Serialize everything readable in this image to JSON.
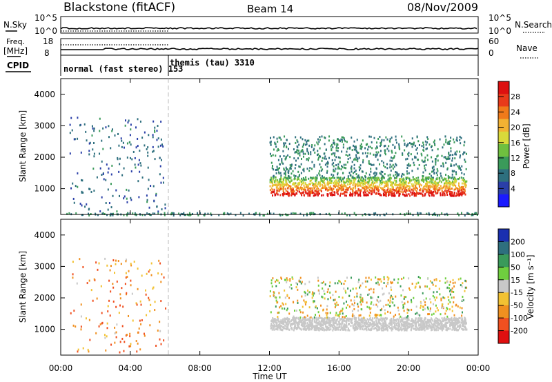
{
  "header": {
    "station": "Blackstone (fitACF)",
    "beam": "Beam 14",
    "date": "08/Nov/2009"
  },
  "side_labels": {
    "nsky": "N.Sky",
    "nsearch": "N.Search",
    "freq_top": "Freq.",
    "freq_unit": "[MHz]",
    "nave": "Nave",
    "cpid": "CPID"
  },
  "cpid_modes": [
    {
      "label": "normal (fast stereo) 153",
      "start_hour": 0.0
    },
    {
      "label": "themis (tau) 3310",
      "start_hour": 6.0
    }
  ],
  "noise_panel": {
    "left_ticks": [
      "10^5",
      "10^0"
    ],
    "right_ticks": [
      "10^5",
      "10^0"
    ]
  },
  "freq_panel": {
    "left_ticks": [
      "18",
      "8"
    ],
    "right_ticks": [
      "60",
      "0"
    ]
  },
  "x_axis": {
    "label": "Time UT",
    "ticks": [
      "00:00",
      "04:00",
      "08:00",
      "12:00",
      "16:00",
      "20:00",
      "00:00"
    ]
  },
  "chart_data": [
    {
      "type": "heatmap",
      "name": "power",
      "ylabel": "Slant Range [km]",
      "yticks": [
        "1000",
        "2000",
        "3000",
        "4000"
      ],
      "ylim": [
        180,
        4500
      ],
      "xlim_hours": [
        0,
        24
      ],
      "colorbar": {
        "label": "Power [dB]",
        "ticks": [
          "4",
          "8",
          "12",
          "16",
          "20",
          "24",
          "28"
        ],
        "colors": [
          "#1a1aff",
          "#2a3fa8",
          "#2e6f7e",
          "#3a9a5a",
          "#6fbf3f",
          "#d9d93a",
          "#f2b233",
          "#f07a1a",
          "#e83a1a",
          "#dd1010"
        ]
      },
      "regions": [
        {
          "feature": "sparse scatter",
          "hours": [
            0.5,
            6.0
          ],
          "range_km": [
            300,
            3300
          ],
          "level_db": 6
        },
        {
          "feature": "ground scatter band",
          "hours": [
            12.0,
            23.3
          ],
          "range_km": [
            800,
            1400
          ],
          "level_db": 24
        },
        {
          "feature": "diffuse echoes",
          "hours": [
            12.0,
            23.3
          ],
          "range_km": [
            1400,
            2700
          ],
          "level_db": 8
        },
        {
          "feature": "near-range line",
          "hours": [
            0.0,
            24.0
          ],
          "range_km": [
            180,
            260
          ],
          "level_db": 8
        }
      ]
    },
    {
      "type": "heatmap",
      "name": "velocity",
      "ylabel": "Slant Range [km]",
      "yticks": [
        "1000",
        "2000",
        "3000",
        "4000"
      ],
      "ylim": [
        180,
        4500
      ],
      "xlim_hours": [
        0,
        24
      ],
      "colorbar": {
        "label": "Velocity [m s⁻¹]",
        "ticks": [
          "200",
          "100",
          "50",
          "15",
          "-15",
          "-50",
          "-100",
          "-200"
        ],
        "colors": [
          "#1a2fb0",
          "#2e6f7e",
          "#3a9a5a",
          "#6fcf3f",
          "#c8c8c8",
          "#f2c233",
          "#f09020",
          "#f05020",
          "#e01010"
        ]
      },
      "regions": [
        {
          "feature": "ground scatter (grey)",
          "hours": [
            12.0,
            23.3
          ],
          "range_km": [
            1000,
            1400
          ],
          "velocity": 0
        },
        {
          "feature": "diffuse echoes",
          "hours": [
            12.0,
            23.3
          ],
          "range_km": [
            1400,
            2700
          ],
          "velocity": -10
        },
        {
          "feature": "sparse scatter",
          "hours": [
            0.5,
            6.0
          ],
          "range_km": [
            300,
            3300
          ],
          "velocity": -60
        }
      ]
    }
  ]
}
